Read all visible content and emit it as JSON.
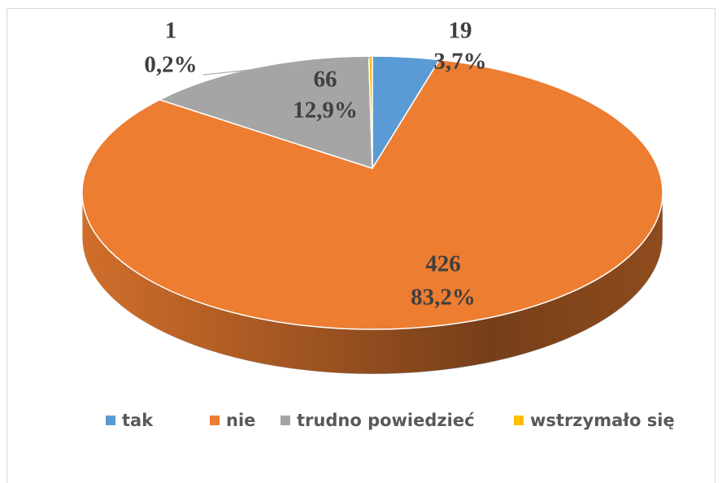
{
  "chart_data": {
    "type": "pie",
    "categories": [
      "tak",
      "nie",
      "trudno powiedzieć",
      "wstrzymało się"
    ],
    "values": [
      19,
      426,
      66,
      1
    ],
    "percentages": [
      3.7,
      83.2,
      12.9,
      0.2
    ],
    "percentage_labels": [
      "3,7%",
      "83,2%",
      "12,9%",
      "0,2%"
    ],
    "colors": [
      "#5b9bd5",
      "#ed7d31",
      "#a5a5a5",
      "#ffc000"
    ],
    "legend": "bottom"
  }
}
